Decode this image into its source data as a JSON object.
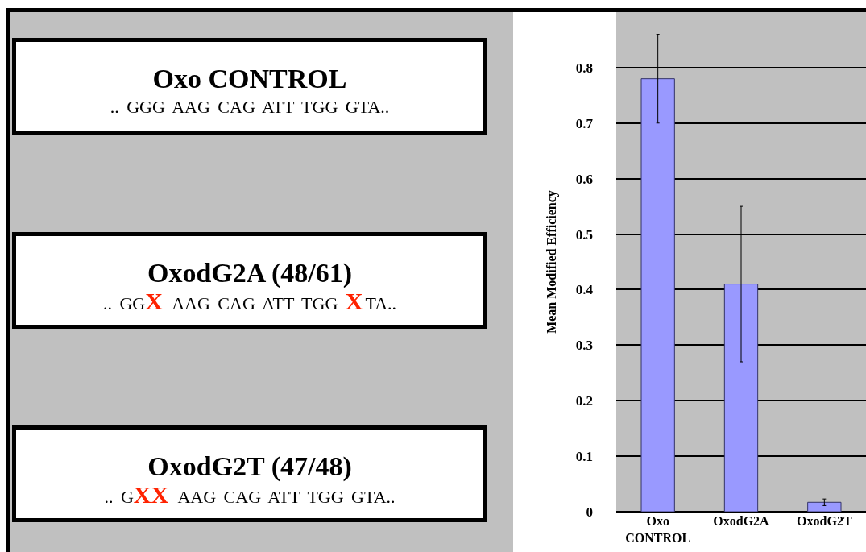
{
  "chart_data": [
    {
      "type": "other",
      "annotations": [
        "Oxo CONTROL",
        ".. GGG AAG CAG ATT TGG GTA..",
        "OxodG2A (48/61)",
        ".. GGX AAG CAG ATT TGG XTA..",
        "OxodG2T (47/48)",
        ".. GXX AAG CAG ATT TGG GTA.."
      ]
    },
    {
      "type": "bar",
      "ylabel": "Mean Modified Efficiency",
      "categories": [
        "Oxo CONTROL",
        "OxodG2A",
        "OxodG2T"
      ],
      "values": [
        0.78,
        0.41,
        0.017
      ],
      "errors": [
        0.08,
        0.14,
        0.006
      ],
      "color": "#9999ff",
      "ylim": [
        0,
        0.9
      ],
      "yticks": [
        0,
        0.1,
        0.2,
        0.3,
        0.4,
        0.5,
        0.6,
        0.7,
        0.8
      ],
      "grid": "y"
    }
  ]
}
